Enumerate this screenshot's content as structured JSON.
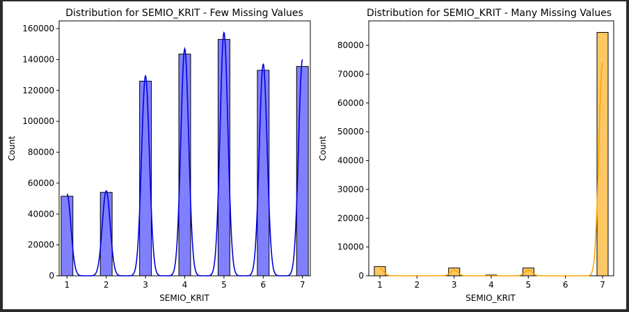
{
  "chart_data": [
    {
      "type": "bar",
      "title": "Distribution for SEMIO_KRIT - Few Missing Values",
      "xlabel": "SEMIO_KRIT",
      "ylabel": "Count",
      "xlim": [
        0.8,
        7.2
      ],
      "ylim": [
        0,
        165000
      ],
      "xticks": [
        1,
        2,
        3,
        4,
        5,
        6,
        7
      ],
      "yticks": [
        0,
        20000,
        40000,
        60000,
        80000,
        100000,
        120000,
        140000,
        160000
      ],
      "bin_width": 0.3,
      "bars": [
        {
          "x": 1,
          "value": 51500
        },
        {
          "x": 2,
          "value": 54000
        },
        {
          "x": 3,
          "value": 126000
        },
        {
          "x": 4,
          "value": 143500
        },
        {
          "x": 5,
          "value": 153000
        },
        {
          "x": 6,
          "value": 133000
        },
        {
          "x": 7,
          "value": 135500
        }
      ],
      "kde_peaks": [
        {
          "x": 1,
          "value": 53000
        },
        {
          "x": 2,
          "value": 55000
        },
        {
          "x": 3,
          "value": 129500
        },
        {
          "x": 4,
          "value": 147000
        },
        {
          "x": 5,
          "value": 157500
        },
        {
          "x": 6,
          "value": 137000
        },
        {
          "x": 7,
          "value": 140000
        }
      ],
      "kde": true,
      "colors": {
        "fill": "#8080ff",
        "line": "#0000dd",
        "edge": "#000000"
      }
    },
    {
      "type": "bar",
      "title": "Distribution for SEMIO_KRIT - Many Missing Values",
      "xlabel": "SEMIO_KRIT",
      "ylabel": "Count",
      "xlim": [
        0.7,
        7.3
      ],
      "ylim": [
        0,
        88500
      ],
      "xticks": [
        1,
        2,
        3,
        4,
        5,
        6,
        7
      ],
      "yticks": [
        0,
        10000,
        20000,
        30000,
        40000,
        50000,
        60000,
        70000,
        80000
      ],
      "bin_width": 0.3,
      "bars": [
        {
          "x": 1,
          "value": 3200
        },
        {
          "x": 3,
          "value": 2700
        },
        {
          "x": 4,
          "value": 250
        },
        {
          "x": 5,
          "value": 2700
        },
        {
          "x": 7,
          "value": 84500
        }
      ],
      "kde_peaks": [
        {
          "x": 1,
          "value": 2500
        },
        {
          "x": 3,
          "value": 2000
        },
        {
          "x": 5,
          "value": 2000
        },
        {
          "x": 7,
          "value": 74000
        }
      ],
      "kde": true,
      "colors": {
        "fill": "#ffc864",
        "line": "#ffa500",
        "edge": "#000000"
      }
    }
  ]
}
